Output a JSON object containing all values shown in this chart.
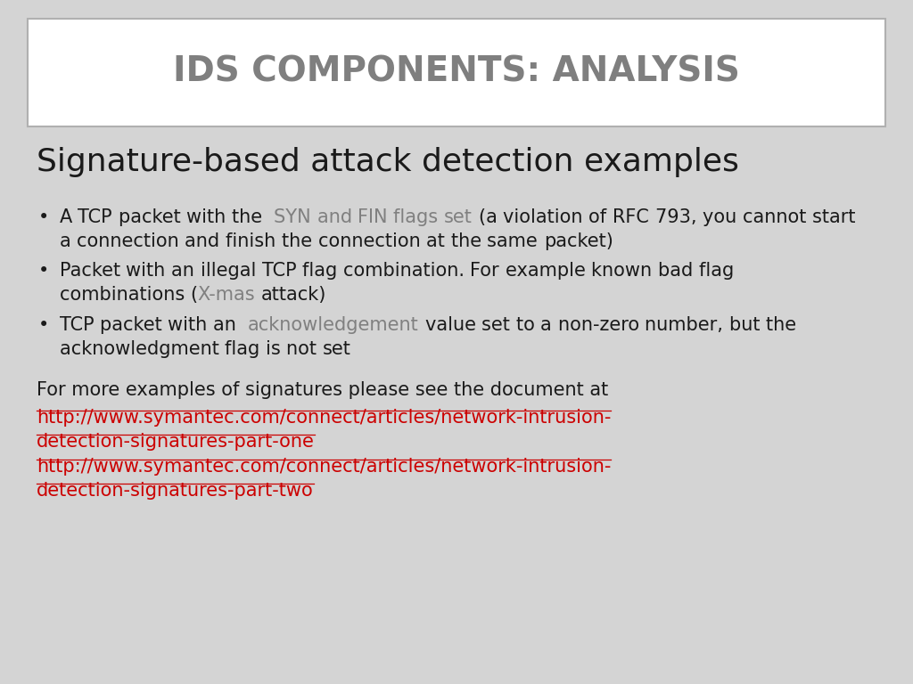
{
  "title": "IDS COMPONENTS: ANALYSIS",
  "title_color": "#7f7f7f",
  "title_fontsize": 28,
  "bg_color": "#d4d4d4",
  "header_bg": "#ffffff",
  "header_border": "#b0b0b0",
  "subtitle": "Signature-based attack detection examples",
  "subtitle_fontsize": 26,
  "subtitle_color": "#1a1a1a",
  "body_fontsize": 15,
  "body_color": "#1a1a1a",
  "inline_color": "#808080",
  "link_color": "#cc0000",
  "bullet1_pre": "A TCP packet with the ",
  "bullet1_inline": "SYN and FIN flags set",
  "bullet1_post": " (a violation of RFC 793, you cannot start a connection and finish the connection at the same packet)",
  "bullet2_pre": "Packet with an illegal TCP flag combination. For example known bad flag combinations (",
  "bullet2_inline": "X-mas",
  "bullet2_post": " attack)",
  "bullet3_pre": "TCP packet with an ",
  "bullet3_inline": "acknowledgement",
  "bullet3_post": " value set to a non-zero number, but the acknowledgment flag is not set",
  "footer": "For more examples of signatures please see the document at",
  "link1a": "http://www.symantec.com/connect/articles/network-intrusion-",
  "link1b": "detection-signatures-part-one",
  "link2a": "http://www.symantec.com/connect/articles/network-intrusion-",
  "link2b": "detection-signatures-part-two"
}
